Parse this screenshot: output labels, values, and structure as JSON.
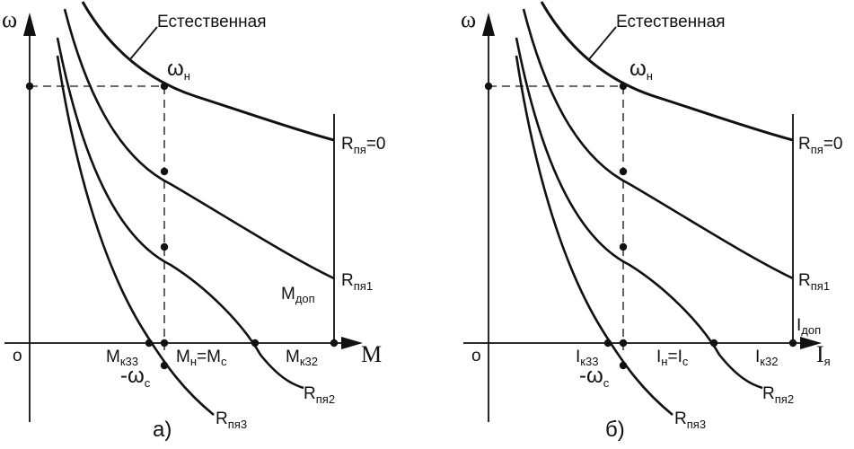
{
  "panel_a": {
    "y_axis": "ω",
    "x_axis": "M",
    "origin": "о",
    "natural_label": "Естественная",
    "omega_n_main": "ω",
    "omega_n_sub": "н",
    "r0_main": "R",
    "r0_sub": "пя",
    "r0_tail": "=0",
    "r1_main": "R",
    "r1_sub": "пя1",
    "r2_main": "R",
    "r2_sub": "пя2",
    "r3_main": "R",
    "r3_sub": "пя3",
    "dop_main": "M",
    "dop_sub": "доп",
    "k33_main": "M",
    "k33_sub": "к33",
    "k32_main": "M",
    "k32_sub": "к32",
    "mid_a": "M",
    "mid_a_sub": "н",
    "mid_eq": "=M",
    "mid_b_sub": "с",
    "neg_main": "-ω",
    "neg_sub": "с",
    "caption": "а)"
  },
  "panel_b": {
    "y_axis": "ω",
    "x_axis_main": "I",
    "x_axis_sub": "я",
    "origin": "о",
    "natural_label": "Естественная",
    "omega_n_main": "ω",
    "omega_n_sub": "н",
    "r0_main": "R",
    "r0_sub": "пя",
    "r0_tail": "=0",
    "r1_main": "R",
    "r1_sub": "пя1",
    "r2_main": "R",
    "r2_sub": "пя2",
    "r3_main": "R",
    "r3_sub": "пя3",
    "dop_main": "I",
    "dop_sub": "доп",
    "k33_main": "I",
    "k33_sub": "к33",
    "k32_main": "I",
    "k32_sub": "к32",
    "mid_a": "I",
    "mid_a_sub": "н",
    "mid_eq": "=I",
    "mid_b_sub": "с",
    "neg_main": "-ω",
    "neg_sub": "с",
    "caption": "б)"
  }
}
